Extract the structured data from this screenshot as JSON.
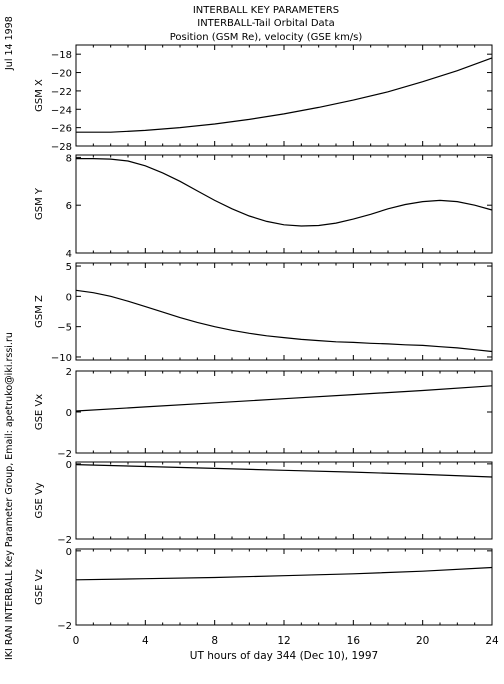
{
  "header": {
    "line1": "INTERBALL KEY PARAMETERS",
    "line2": "INTERBALL-Tail Orbital Data",
    "line3": "Position (GSM Re), velocity (GSE km/s)"
  },
  "side": {
    "date": "Jul 14 1998",
    "credit": "IKI RAN INTERBALL Key Parameter Group, Email: apetruko@iki.rssi.ru"
  },
  "chart_data": {
    "type": "line",
    "xlabel": "UT hours of day 344 (Dec 10), 1997",
    "xlim": [
      0,
      24
    ],
    "xticks": [
      0,
      4,
      8,
      12,
      16,
      20,
      24
    ],
    "panels": [
      {
        "name": "GSM X",
        "ylim": [
          -28,
          -17
        ],
        "yticks": [
          -28,
          -26,
          -24,
          -22,
          -20,
          -18
        ],
        "series": [
          {
            "x": [
              0,
              2,
              4,
              6,
              8,
              10,
              12,
              14,
              16,
              18,
              20,
              22,
              24
            ],
            "y": [
              -26.5,
              -26.5,
              -26.3,
              -26.0,
              -25.6,
              -25.1,
              -24.5,
              -23.8,
              -23.0,
              -22.1,
              -21.0,
              -19.8,
              -18.4
            ]
          }
        ]
      },
      {
        "name": "GSM Y",
        "ylim": [
          4,
          8.1
        ],
        "yticks": [
          4,
          6,
          8
        ],
        "series": [
          {
            "x": [
              0,
              1,
              2,
              3,
              4,
              5,
              6,
              7,
              8,
              9,
              10,
              11,
              12,
              13,
              14,
              15,
              16,
              17,
              18,
              19,
              20,
              21,
              22,
              23,
              24
            ],
            "y": [
              7.95,
              7.95,
              7.93,
              7.85,
              7.65,
              7.35,
              7.0,
              6.6,
              6.2,
              5.85,
              5.55,
              5.32,
              5.18,
              5.13,
              5.15,
              5.25,
              5.42,
              5.62,
              5.85,
              6.03,
              6.15,
              6.2,
              6.15,
              6.0,
              5.8
            ]
          }
        ]
      },
      {
        "name": "GSM Z",
        "ylim": [
          -10.5,
          5.5
        ],
        "yticks": [
          -10,
          -5,
          0,
          5
        ],
        "series": [
          {
            "x": [
              0,
              1,
              2,
              3,
              4,
              5,
              6,
              7,
              8,
              9,
              10,
              11,
              12,
              13,
              14,
              15,
              16,
              17,
              18,
              19,
              20,
              21,
              22,
              23,
              24
            ],
            "y": [
              1.0,
              0.6,
              0.0,
              -0.8,
              -1.7,
              -2.6,
              -3.5,
              -4.3,
              -5.0,
              -5.6,
              -6.1,
              -6.5,
              -6.8,
              -7.1,
              -7.3,
              -7.5,
              -7.6,
              -7.75,
              -7.85,
              -8.0,
              -8.1,
              -8.3,
              -8.5,
              -8.8,
              -9.1
            ]
          }
        ]
      },
      {
        "name": "GSE Vx",
        "ylim": [
          -2,
          2
        ],
        "yticks": [
          -2,
          0,
          2
        ],
        "series": [
          {
            "x": [
              0,
              4,
              8,
              12,
              16,
              20,
              24
            ],
            "y": [
              0.05,
              0.25,
              0.45,
              0.65,
              0.85,
              1.05,
              1.28
            ]
          }
        ]
      },
      {
        "name": "GSE Vy",
        "ylim": [
          -2,
          0.05
        ],
        "yticks": [
          -2,
          0
        ],
        "series": [
          {
            "x": [
              0,
              4,
              8,
              12,
              16,
              20,
              24
            ],
            "y": [
              -0.02,
              -0.07,
              -0.12,
              -0.17,
              -0.22,
              -0.28,
              -0.35
            ]
          }
        ]
      },
      {
        "name": "GSE Vz",
        "ylim": [
          -2,
          0.05
        ],
        "yticks": [
          -2,
          0
        ],
        "series": [
          {
            "x": [
              0,
              4,
              8,
              12,
              16,
              20,
              24
            ],
            "y": [
              -0.78,
              -0.75,
              -0.72,
              -0.67,
              -0.62,
              -0.55,
              -0.45
            ]
          }
        ]
      }
    ]
  }
}
